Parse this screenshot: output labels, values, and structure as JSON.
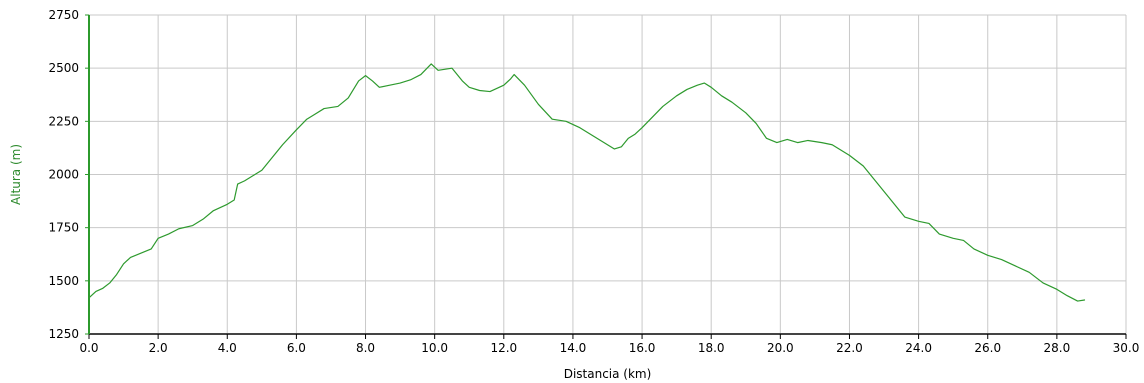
{
  "chart_data": {
    "type": "line",
    "xlabel": "Distancia (km)",
    "ylabel": "Altura (m)",
    "xlim": [
      0,
      30
    ],
    "ylim": [
      1250,
      2750
    ],
    "x_ticks": [
      0,
      2,
      4,
      6,
      8,
      10,
      12,
      14,
      16,
      18,
      20,
      22,
      24,
      26,
      28,
      30
    ],
    "x_tick_labels": [
      "0.0",
      "2.0",
      "4.0",
      "6.0",
      "8.0",
      "10.0",
      "12.0",
      "14.0",
      "16.0",
      "18.0",
      "20.0",
      "22.0",
      "24.0",
      "26.0",
      "28.0",
      "30.0"
    ],
    "y_ticks": [
      1250,
      1500,
      1750,
      2000,
      2250,
      2500,
      2750
    ],
    "y_tick_labels": [
      "1250",
      "1500",
      "1750",
      "2000",
      "2250",
      "2500",
      "2750"
    ],
    "grid": true,
    "colors": {
      "line": "#2e9a2e",
      "ylabel": "#2e8b2e",
      "y_axis": "#2c9a2c",
      "grid": "#c9c9c9",
      "x_axis": "#444444"
    },
    "series": [
      {
        "values": [
          [
            0.0,
            1420
          ],
          [
            0.2,
            1450
          ],
          [
            0.4,
            1465
          ],
          [
            0.6,
            1490
          ],
          [
            0.8,
            1530
          ],
          [
            1.0,
            1580
          ],
          [
            1.2,
            1610
          ],
          [
            1.5,
            1630
          ],
          [
            1.8,
            1650
          ],
          [
            2.0,
            1700
          ],
          [
            2.3,
            1720
          ],
          [
            2.6,
            1745
          ],
          [
            3.0,
            1760
          ],
          [
            3.3,
            1790
          ],
          [
            3.6,
            1830
          ],
          [
            4.0,
            1860
          ],
          [
            4.2,
            1880
          ],
          [
            4.3,
            1955
          ],
          [
            4.5,
            1970
          ],
          [
            4.8,
            2000
          ],
          [
            5.0,
            2020
          ],
          [
            5.3,
            2080
          ],
          [
            5.6,
            2140
          ],
          [
            6.0,
            2210
          ],
          [
            6.3,
            2260
          ],
          [
            6.5,
            2280
          ],
          [
            6.8,
            2310
          ],
          [
            7.2,
            2320
          ],
          [
            7.5,
            2360
          ],
          [
            7.8,
            2440
          ],
          [
            8.0,
            2465
          ],
          [
            8.2,
            2440
          ],
          [
            8.4,
            2410
          ],
          [
            8.7,
            2420
          ],
          [
            9.0,
            2430
          ],
          [
            9.3,
            2445
          ],
          [
            9.6,
            2470
          ],
          [
            9.9,
            2520
          ],
          [
            10.1,
            2490
          ],
          [
            10.5,
            2500
          ],
          [
            10.8,
            2440
          ],
          [
            11.0,
            2410
          ],
          [
            11.3,
            2395
          ],
          [
            11.6,
            2390
          ],
          [
            12.0,
            2420
          ],
          [
            12.2,
            2450
          ],
          [
            12.3,
            2470
          ],
          [
            12.6,
            2420
          ],
          [
            13.0,
            2330
          ],
          [
            13.4,
            2260
          ],
          [
            13.8,
            2250
          ],
          [
            14.2,
            2220
          ],
          [
            14.6,
            2180
          ],
          [
            15.0,
            2140
          ],
          [
            15.2,
            2120
          ],
          [
            15.4,
            2130
          ],
          [
            15.6,
            2170
          ],
          [
            15.8,
            2190
          ],
          [
            16.0,
            2220
          ],
          [
            16.3,
            2270
          ],
          [
            16.6,
            2320
          ],
          [
            17.0,
            2370
          ],
          [
            17.3,
            2400
          ],
          [
            17.6,
            2420
          ],
          [
            17.8,
            2430
          ],
          [
            18.0,
            2410
          ],
          [
            18.3,
            2370
          ],
          [
            18.6,
            2340
          ],
          [
            19.0,
            2290
          ],
          [
            19.3,
            2240
          ],
          [
            19.6,
            2170
          ],
          [
            19.9,
            2150
          ],
          [
            20.2,
            2165
          ],
          [
            20.5,
            2150
          ],
          [
            20.8,
            2160
          ],
          [
            21.2,
            2150
          ],
          [
            21.5,
            2140
          ],
          [
            22.0,
            2090
          ],
          [
            22.4,
            2040
          ],
          [
            22.8,
            1960
          ],
          [
            23.2,
            1880
          ],
          [
            23.6,
            1800
          ],
          [
            24.0,
            1780
          ],
          [
            24.3,
            1770
          ],
          [
            24.6,
            1720
          ],
          [
            25.0,
            1700
          ],
          [
            25.3,
            1690
          ],
          [
            25.6,
            1650
          ],
          [
            26.0,
            1620
          ],
          [
            26.4,
            1600
          ],
          [
            26.8,
            1570
          ],
          [
            27.2,
            1540
          ],
          [
            27.6,
            1490
          ],
          [
            28.0,
            1460
          ],
          [
            28.3,
            1430
          ],
          [
            28.6,
            1405
          ],
          [
            28.8,
            1410
          ]
        ]
      }
    ]
  }
}
